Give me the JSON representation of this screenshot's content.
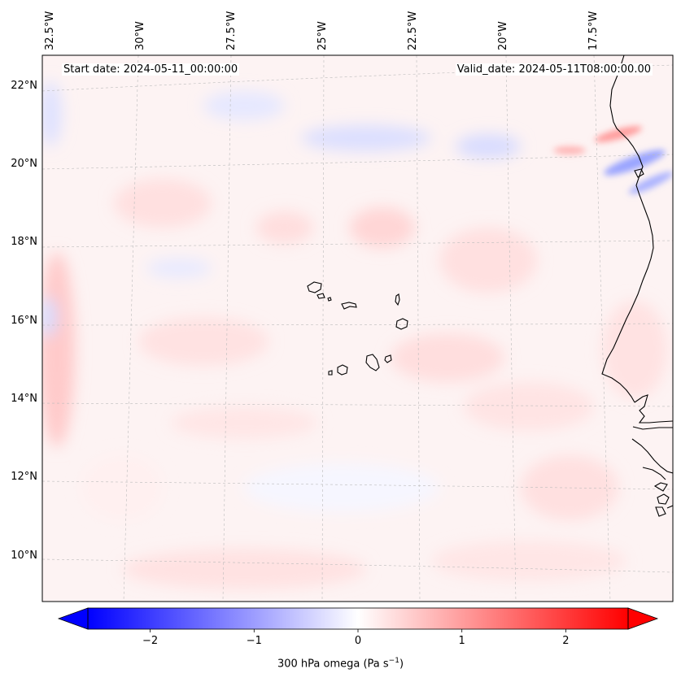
{
  "map": {
    "header_left": "Start date: 2024-05-11_00:00:00",
    "header_right": "Valid_date: 2024-05-11T08:00:00.00",
    "lon_labels": [
      "32.5°W",
      "30°W",
      "27.5°W",
      "25°W",
      "22.5°W",
      "20°W",
      "17.5°W"
    ],
    "lat_labels": [
      "22°N",
      "20°N",
      "18°N",
      "16°N",
      "14°N",
      "12°N",
      "10°N"
    ],
    "extent": {
      "lon_min": -33.0,
      "lon_max": -15.8,
      "lat_min": 8.9,
      "lat_max": 22.8
    },
    "islands": [
      "Santo Antão",
      "São Vicente",
      "São Nicolau",
      "Sal",
      "Boa Vista",
      "Maio",
      "Santiago",
      "Fogo",
      "Brava"
    ]
  },
  "colorbar": {
    "label_prefix": "300 hPa omega (Pa s",
    "label_sup": "−1",
    "label_suffix": ")",
    "ticks": [
      "−2",
      "−1",
      "0",
      "1",
      "2"
    ],
    "tick_values": [
      -2,
      -1,
      0,
      1,
      2
    ],
    "range": [
      -2.6,
      2.6
    ],
    "colors": {
      "negative": "#0000ff",
      "zero": "#ffffff",
      "positive": "#ff0000"
    }
  }
}
